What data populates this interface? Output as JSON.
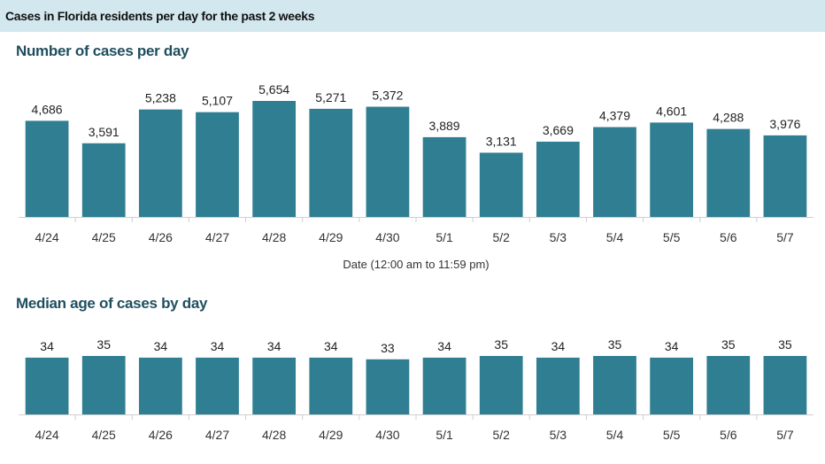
{
  "header": {
    "title": "Cases in Florida residents per day for the past 2 weeks"
  },
  "colors": {
    "bar": "#2f7e92",
    "header_bg": "#d3e7ee",
    "section_title": "#1f4e5f"
  },
  "chart_data": [
    {
      "type": "bar",
      "title": "Number of cases per day",
      "xlabel": "Date (12:00 am to 11:59 pm)",
      "ylabel": "",
      "categories": [
        "4/24",
        "4/25",
        "4/26",
        "4/27",
        "4/28",
        "4/29",
        "4/30",
        "5/1",
        "5/2",
        "5/3",
        "5/4",
        "5/5",
        "5/6",
        "5/7"
      ],
      "values": [
        4686,
        3591,
        5238,
        5107,
        5654,
        5271,
        5372,
        3889,
        3131,
        3669,
        4379,
        4601,
        4288,
        3976
      ],
      "value_labels": [
        "4,686",
        "3,591",
        "5,238",
        "5,107",
        "5,654",
        "5,271",
        "5,372",
        "3,889",
        "3,131",
        "3,669",
        "4,379",
        "4,601",
        "4,288",
        "3,976"
      ],
      "ylim": [
        0,
        5654
      ],
      "grid": false,
      "legend": "none"
    },
    {
      "type": "bar",
      "title": "Median age of cases by day",
      "xlabel": "",
      "ylabel": "",
      "categories": [
        "4/24",
        "4/25",
        "4/26",
        "4/27",
        "4/28",
        "4/29",
        "4/30",
        "5/1",
        "5/2",
        "5/3",
        "5/4",
        "5/5",
        "5/6",
        "5/7"
      ],
      "values": [
        34,
        35,
        34,
        34,
        34,
        34,
        33,
        34,
        35,
        34,
        35,
        34,
        35,
        35
      ],
      "value_labels": [
        "34",
        "35",
        "34",
        "34",
        "34",
        "34",
        "33",
        "34",
        "35",
        "34",
        "35",
        "34",
        "35",
        "35"
      ],
      "ylim": [
        0,
        35
      ],
      "grid": false,
      "legend": "none"
    }
  ]
}
